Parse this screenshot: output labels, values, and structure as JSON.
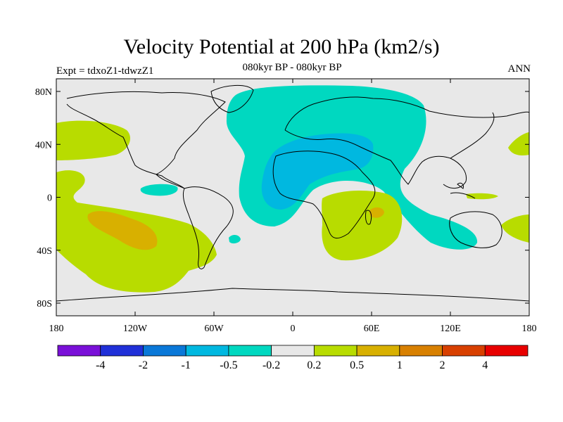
{
  "title": "Velocity Potential at 200 hPa (km2/s)",
  "experiment_label": "Expt = tdxoZ1-tdwzZ1",
  "period_label": "080kyr BP - 080kyr BP",
  "season_label": "ANN",
  "map": {
    "background_color": "#e8e8e8",
    "lat_ticks": [
      "80N",
      "40N",
      "0",
      "40S",
      "80S"
    ],
    "lon_ticks": [
      "180",
      "120W",
      "60W",
      "0",
      "60E",
      "120E",
      "180"
    ]
  },
  "colorbar": {
    "colors": [
      "#7a10d8",
      "#2030d8",
      "#0a78d8",
      "#00b8e0",
      "#00d8c0",
      "#e8e8e8",
      "#b8dc00",
      "#d8b000",
      "#d88000",
      "#d84000",
      "#e80000"
    ],
    "labels": [
      "-4",
      "-2",
      "-1",
      "-0.5",
      "-0.2",
      "0.2",
      "0.5",
      "1",
      "2",
      "4"
    ]
  },
  "regions": [
    {
      "name": "eurasia-negative-region",
      "level": "-0.5 to -0.2",
      "color": "#00d8c0"
    },
    {
      "name": "mediterranean-negative-region",
      "level": "-1 to -0.5",
      "color": "#00b8e0"
    },
    {
      "name": "pacific-positive-region",
      "level": "0.2 to 0.5",
      "color": "#b8dc00"
    },
    {
      "name": "south-pacific-positive-core",
      "level": "0.5 to 1",
      "color": "#d8b000"
    },
    {
      "name": "indian-ocean-positive-region",
      "level": "0.2 to 0.5",
      "color": "#b8dc00"
    }
  ]
}
